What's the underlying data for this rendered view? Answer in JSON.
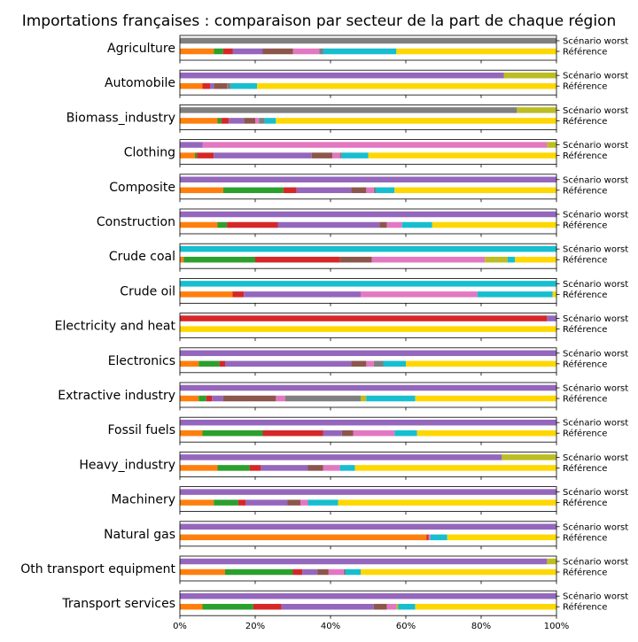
{
  "chart_data": {
    "type": "bar",
    "orientation": "horizontal",
    "stacked": true,
    "title": "Importations françaises : comparaison par secteur de la part de chaque région",
    "bar_labels": [
      "Scénario worst",
      "Référence"
    ],
    "x_ticks": [
      "0%",
      "20%",
      "40%",
      "60%",
      "80%",
      "100%"
    ],
    "xlim": [
      0,
      100
    ],
    "grid": false,
    "legend": "none",
    "segment_colors": [
      "#1f77b4",
      "#ff7f0e",
      "#2ca02c",
      "#d62728",
      "#9467bd",
      "#8c564b",
      "#e377c2",
      "#7f7f7f",
      "#bcbd22",
      "#17becf",
      "#ffd700"
    ],
    "sectors": [
      {
        "name": "Agriculture",
        "worst": [
          0,
          0,
          0,
          0,
          0,
          0,
          0,
          100,
          0,
          0,
          0
        ],
        "reference": [
          0,
          9,
          2.5,
          2.5,
          8,
          8,
          7,
          1,
          0,
          19.5,
          42.5
        ]
      },
      {
        "name": "Automobile",
        "worst": [
          0,
          0,
          0,
          0,
          86,
          0,
          0,
          0,
          14,
          0,
          0
        ],
        "reference": [
          0,
          6,
          0,
          2,
          1,
          3.5,
          0,
          1,
          0,
          7,
          79.5
        ]
      },
      {
        "name": "Biomass_industry",
        "worst": [
          0,
          0,
          0,
          0,
          0,
          0,
          0,
          89.5,
          10.5,
          0,
          0
        ],
        "reference": [
          0,
          10,
          1,
          2,
          4,
          3,
          1,
          1.5,
          0,
          3,
          74.5
        ]
      },
      {
        "name": "Clothing",
        "worst": [
          0,
          0,
          0,
          0,
          6,
          0,
          91.5,
          0,
          2.5,
          0,
          0
        ],
        "reference": [
          0,
          4,
          0.5,
          4.5,
          26,
          5.5,
          2,
          0.5,
          0,
          7,
          50
        ]
      },
      {
        "name": "Composite",
        "worst": [
          0,
          0,
          0,
          0,
          100,
          0,
          0,
          0,
          0,
          0,
          0
        ],
        "reference": [
          0,
          11.5,
          16,
          3.5,
          14.5,
          4,
          2,
          0.5,
          0,
          5,
          43
        ]
      },
      {
        "name": "Construction",
        "worst": [
          0,
          0,
          0,
          0,
          100,
          0,
          0,
          0,
          0,
          0,
          0
        ],
        "reference": [
          0,
          10,
          2.5,
          13.5,
          27,
          2,
          4,
          0,
          0,
          8,
          33
        ]
      },
      {
        "name": "Crude coal",
        "worst": [
          0,
          0,
          0,
          0,
          0,
          0,
          0,
          0,
          0,
          100,
          0
        ],
        "reference": [
          0,
          1,
          19,
          22.5,
          0,
          8.5,
          30,
          0,
          6,
          2,
          11
        ]
      },
      {
        "name": "Crude oil",
        "worst": [
          0,
          0,
          0,
          0,
          0,
          0,
          0,
          0,
          0,
          100,
          0
        ],
        "reference": [
          0,
          14,
          0,
          3,
          31,
          0,
          31,
          0,
          0,
          20,
          1
        ]
      },
      {
        "name": "Electricity and heat",
        "worst": [
          0,
          0,
          0,
          97.5,
          2.5,
          0,
          0,
          0,
          0,
          0,
          0
        ],
        "reference": [
          0,
          0,
          0,
          0,
          0,
          0,
          0,
          0,
          0,
          0,
          100
        ]
      },
      {
        "name": "Electronics",
        "worst": [
          0,
          0,
          0,
          0,
          100,
          0,
          0,
          0,
          0,
          0,
          0
        ],
        "reference": [
          0,
          5,
          5.5,
          1.5,
          33.5,
          4,
          2,
          2.5,
          0,
          6,
          40
        ]
      },
      {
        "name": "Extractive industry",
        "worst": [
          0,
          0,
          0,
          0,
          100,
          0,
          0,
          0,
          0,
          0,
          0
        ],
        "reference": [
          0,
          5,
          2,
          1.5,
          3,
          14,
          2.5,
          20,
          1.5,
          13,
          37.5
        ]
      },
      {
        "name": "Fossil fuels",
        "worst": [
          0,
          0,
          0,
          0,
          100,
          0,
          0,
          0,
          0,
          0,
          0
        ],
        "reference": [
          0,
          6,
          16,
          16,
          5,
          3,
          11,
          0,
          0,
          6,
          37
        ]
      },
      {
        "name": "Heavy_industry",
        "worst": [
          0,
          0,
          0,
          0,
          85.5,
          0,
          0,
          0,
          14.5,
          0,
          0
        ],
        "reference": [
          0,
          10,
          8.5,
          3,
          12.5,
          4,
          4.5,
          0,
          0,
          4,
          53.5
        ]
      },
      {
        "name": "Machinery",
        "worst": [
          0,
          0,
          0,
          0,
          100,
          0,
          0,
          0,
          0,
          0,
          0
        ],
        "reference": [
          0,
          9,
          6.5,
          2,
          11,
          3.5,
          2,
          0,
          0,
          8,
          58
        ]
      },
      {
        "name": "Natural gas",
        "worst": [
          0,
          0,
          0,
          0,
          100,
          0,
          0,
          0,
          0,
          0,
          0
        ],
        "reference": [
          0,
          65.5,
          0,
          0.5,
          0,
          0,
          0.5,
          0,
          0,
          4.5,
          29
        ]
      },
      {
        "name": "Oth transport equipment",
        "worst": [
          0,
          0,
          0,
          0,
          97.5,
          0,
          0,
          0,
          2.5,
          0,
          0
        ],
        "reference": [
          0,
          12,
          18,
          2.5,
          4,
          3,
          4,
          0.5,
          0,
          4,
          52
        ]
      },
      {
        "name": "Transport services",
        "worst": [
          0,
          0,
          0,
          0,
          100,
          0,
          0,
          0,
          0,
          0,
          0
        ],
        "reference": [
          0,
          6,
          13.5,
          7.5,
          24.5,
          3.5,
          2.5,
          0,
          0.5,
          4.5,
          37.5
        ]
      }
    ]
  }
}
